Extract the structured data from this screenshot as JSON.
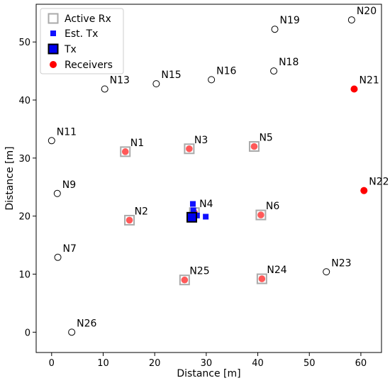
{
  "chart_data": {
    "type": "scatter",
    "xlabel": "Distance [m]",
    "ylabel": "Distance [m]",
    "xlim": [
      -3,
      64
    ],
    "ylim": [
      -3.5,
      56.5
    ],
    "xticks": [
      0,
      10,
      20,
      30,
      40,
      50,
      60
    ],
    "yticks": [
      0,
      10,
      20,
      30,
      40,
      50
    ],
    "grid": false,
    "legend_position": "top-left",
    "colors": {
      "active_rx": "#aaaaaa",
      "est_tx": "#1010ff",
      "tx_fill": "#0000ee",
      "tx_edge": "#000000",
      "receivers": "#ff0000",
      "inactive_node_edge": "#000000"
    },
    "legend": [
      {
        "key": "active_rx",
        "label": "Active Rx"
      },
      {
        "key": "est_tx",
        "label": "Est. Tx"
      },
      {
        "key": "tx",
        "label": "Tx"
      },
      {
        "key": "receivers",
        "label": "Receivers"
      }
    ],
    "nodes": [
      {
        "id": "N1",
        "x": 14.3,
        "y": 31.1,
        "state": "active"
      },
      {
        "id": "N2",
        "x": 15.1,
        "y": 19.3,
        "state": "active"
      },
      {
        "id": "N3",
        "x": 26.7,
        "y": 31.6,
        "state": "active"
      },
      {
        "id": "N4",
        "x": 27.7,
        "y": 20.6,
        "state": "active"
      },
      {
        "id": "N5",
        "x": 39.3,
        "y": 32.0,
        "state": "active"
      },
      {
        "id": "N6",
        "x": 40.6,
        "y": 20.2,
        "state": "active"
      },
      {
        "id": "N7",
        "x": 1.2,
        "y": 12.9,
        "state": "inactive"
      },
      {
        "id": "N9",
        "x": 1.1,
        "y": 23.9,
        "state": "inactive"
      },
      {
        "id": "N11",
        "x": 0.0,
        "y": 33.0,
        "state": "inactive"
      },
      {
        "id": "N13",
        "x": 10.3,
        "y": 41.9,
        "state": "inactive"
      },
      {
        "id": "N15",
        "x": 20.3,
        "y": 42.8,
        "state": "inactive"
      },
      {
        "id": "N16",
        "x": 31.0,
        "y": 43.5,
        "state": "inactive"
      },
      {
        "id": "N18",
        "x": 43.1,
        "y": 45.0,
        "state": "inactive"
      },
      {
        "id": "N19",
        "x": 43.3,
        "y": 52.2,
        "state": "inactive"
      },
      {
        "id": "N20",
        "x": 58.2,
        "y": 53.8,
        "state": "inactive"
      },
      {
        "id": "N21",
        "x": 58.7,
        "y": 41.9,
        "state": "receiver"
      },
      {
        "id": "N22",
        "x": 60.6,
        "y": 24.4,
        "state": "receiver"
      },
      {
        "id": "N23",
        "x": 53.3,
        "y": 10.4,
        "state": "inactive"
      },
      {
        "id": "N24",
        "x": 40.8,
        "y": 9.2,
        "state": "active"
      },
      {
        "id": "N25",
        "x": 25.8,
        "y": 9.0,
        "state": "active"
      },
      {
        "id": "N26",
        "x": 3.9,
        "y": 0.0,
        "state": "inactive"
      }
    ],
    "estimated_tx": [
      {
        "x": 27.4,
        "y": 22.1
      },
      {
        "x": 27.5,
        "y": 21.0
      },
      {
        "x": 28.2,
        "y": 20.1
      },
      {
        "x": 29.9,
        "y": 19.9
      }
    ],
    "tx": {
      "x": 27.2,
      "y": 19.8
    }
  }
}
